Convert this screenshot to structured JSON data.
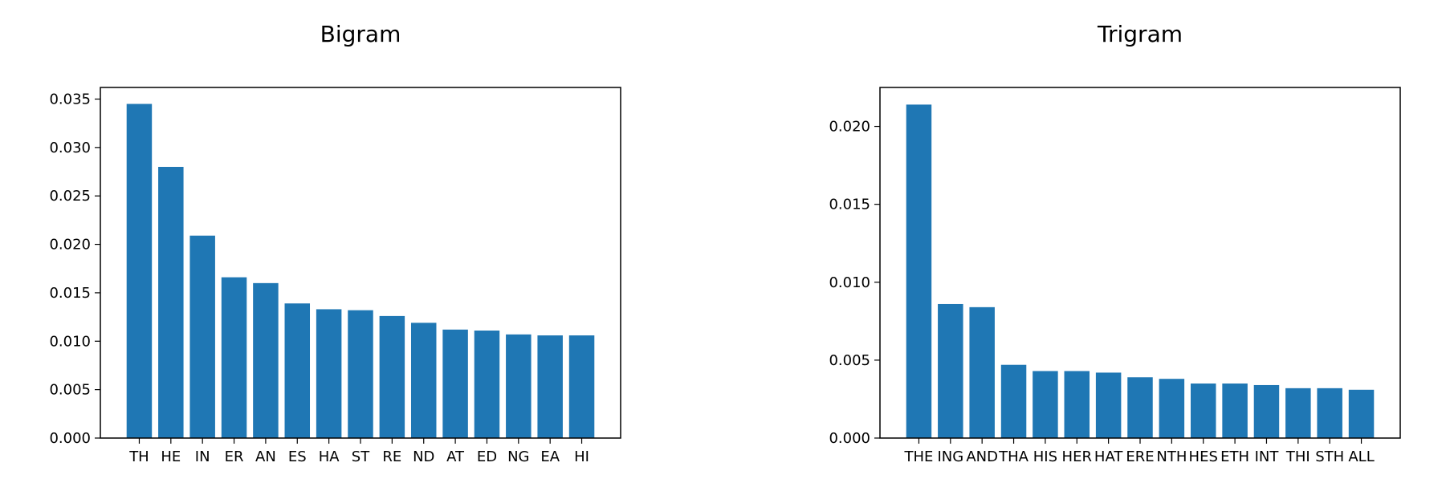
{
  "chart_data": [
    {
      "type": "bar",
      "title": "Bigram",
      "xlabel": "",
      "ylabel": "",
      "categories": [
        "TH",
        "HE",
        "IN",
        "ER",
        "AN",
        "ES",
        "HA",
        "ST",
        "RE",
        "ND",
        "AT",
        "ED",
        "NG",
        "EA",
        "HI"
      ],
      "values": [
        0.0345,
        0.028,
        0.0209,
        0.0166,
        0.016,
        0.0139,
        0.0133,
        0.0132,
        0.0126,
        0.0119,
        0.0112,
        0.0111,
        0.0107,
        0.0106,
        0.0106
      ],
      "ylim": [
        0,
        0.0362
      ],
      "yticks": [
        0.0,
        0.005,
        0.01,
        0.015,
        0.02,
        0.025,
        0.03,
        0.035
      ],
      "ytick_labels": [
        "0.000",
        "0.005",
        "0.010",
        "0.015",
        "0.020",
        "0.025",
        "0.030",
        "0.035"
      ],
      "grid": false,
      "color": "#1f77b4"
    },
    {
      "type": "bar",
      "title": "Trigram",
      "xlabel": "",
      "ylabel": "",
      "categories": [
        "THE",
        "ING",
        "AND",
        "THA",
        "HIS",
        "HER",
        "HAT",
        "ERE",
        "NTH",
        "HES",
        "ETH",
        "INT",
        "THI",
        "STH",
        "ALL"
      ],
      "values": [
        0.0214,
        0.0086,
        0.0084,
        0.0047,
        0.0043,
        0.0043,
        0.0042,
        0.0039,
        0.0038,
        0.0035,
        0.0035,
        0.0034,
        0.0032,
        0.0032,
        0.0031
      ],
      "ylim": [
        0,
        0.0225
      ],
      "yticks": [
        0.0,
        0.005,
        0.01,
        0.015,
        0.02
      ],
      "ytick_labels": [
        "0.000",
        "0.005",
        "0.010",
        "0.015",
        "0.020"
      ],
      "grid": false,
      "color": "#1f77b4"
    }
  ]
}
